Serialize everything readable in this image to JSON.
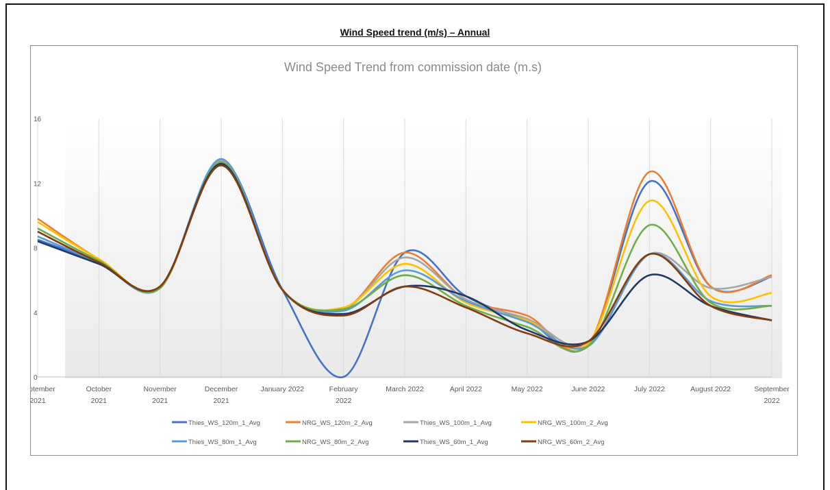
{
  "document": {
    "title": "Wind Speed trend (m/s) – Annual"
  },
  "chart_data": {
    "type": "line",
    "title": "Wind Speed Trend from commission date (m.s)",
    "xlabel": "",
    "ylabel": "",
    "ylim": [
      0,
      16
    ],
    "yticks": [
      0,
      4,
      8,
      12,
      16
    ],
    "grid": "vertical",
    "legend_position": "bottom",
    "categories": [
      [
        "September",
        "2021"
      ],
      [
        "October",
        "2021"
      ],
      [
        "November",
        "2021"
      ],
      [
        "December",
        "2021"
      ],
      [
        "January 2022"
      ],
      [
        "February",
        "2022"
      ],
      [
        "March 2022"
      ],
      [
        "April 2022"
      ],
      [
        "May 2022"
      ],
      [
        "June 2022"
      ],
      [
        "July 2022"
      ],
      [
        "August 2022"
      ],
      [
        "September",
        "2022"
      ]
    ],
    "series": [
      {
        "name": "Thies_WS_120m_1_Avg",
        "color": "#4472C4",
        "values": [
          8.5,
          7.1,
          5.5,
          13.4,
          5.4,
          0.0,
          7.7,
          5.0,
          3.5,
          2.0,
          12.1,
          5.6,
          6.2
        ]
      },
      {
        "name": "NRG_WS_120m_2_Avg",
        "color": "#ED7D31",
        "values": [
          9.8,
          7.3,
          5.5,
          13.3,
          5.4,
          4.2,
          7.7,
          4.8,
          3.8,
          2.0,
          12.7,
          5.6,
          6.3
        ]
      },
      {
        "name": "Thies_WS_100m_1_Avg",
        "color": "#A5A5A5",
        "values": [
          9.2,
          7.2,
          5.5,
          13.4,
          5.4,
          4.2,
          7.4,
          4.8,
          3.6,
          2.0,
          7.6,
          5.5,
          6.2
        ]
      },
      {
        "name": "NRG_WS_100m_2_Avg",
        "color": "#FFC000",
        "values": [
          9.6,
          7.3,
          5.5,
          13.3,
          5.4,
          4.3,
          7.0,
          4.6,
          3.5,
          2.1,
          10.9,
          5.0,
          5.2
        ]
      },
      {
        "name": "Thies_WS_80m_1_Avg",
        "color": "#5B9BD5",
        "values": [
          8.7,
          7.1,
          5.5,
          13.5,
          5.4,
          4.1,
          6.6,
          4.7,
          3.4,
          1.9,
          7.6,
          4.7,
          4.4
        ]
      },
      {
        "name": "NRG_WS_80m_2_Avg",
        "color": "#70AD47",
        "values": [
          9.2,
          7.2,
          5.5,
          13.3,
          5.4,
          4.2,
          6.3,
          4.4,
          3.1,
          1.9,
          9.4,
          4.6,
          4.4
        ]
      },
      {
        "name": "Thies_WS_60m_1_Avg",
        "color": "#1F3864",
        "values": [
          8.4,
          7.0,
          5.6,
          13.2,
          5.4,
          3.9,
          5.6,
          5.0,
          2.9,
          2.2,
          6.3,
          4.4,
          3.5
        ]
      },
      {
        "name": "NRG_WS_60m_2_Avg",
        "color": "#843C0C",
        "values": [
          9.0,
          7.1,
          5.6,
          13.1,
          5.4,
          3.8,
          5.6,
          4.3,
          2.7,
          2.2,
          7.6,
          4.4,
          3.5
        ]
      }
    ]
  }
}
